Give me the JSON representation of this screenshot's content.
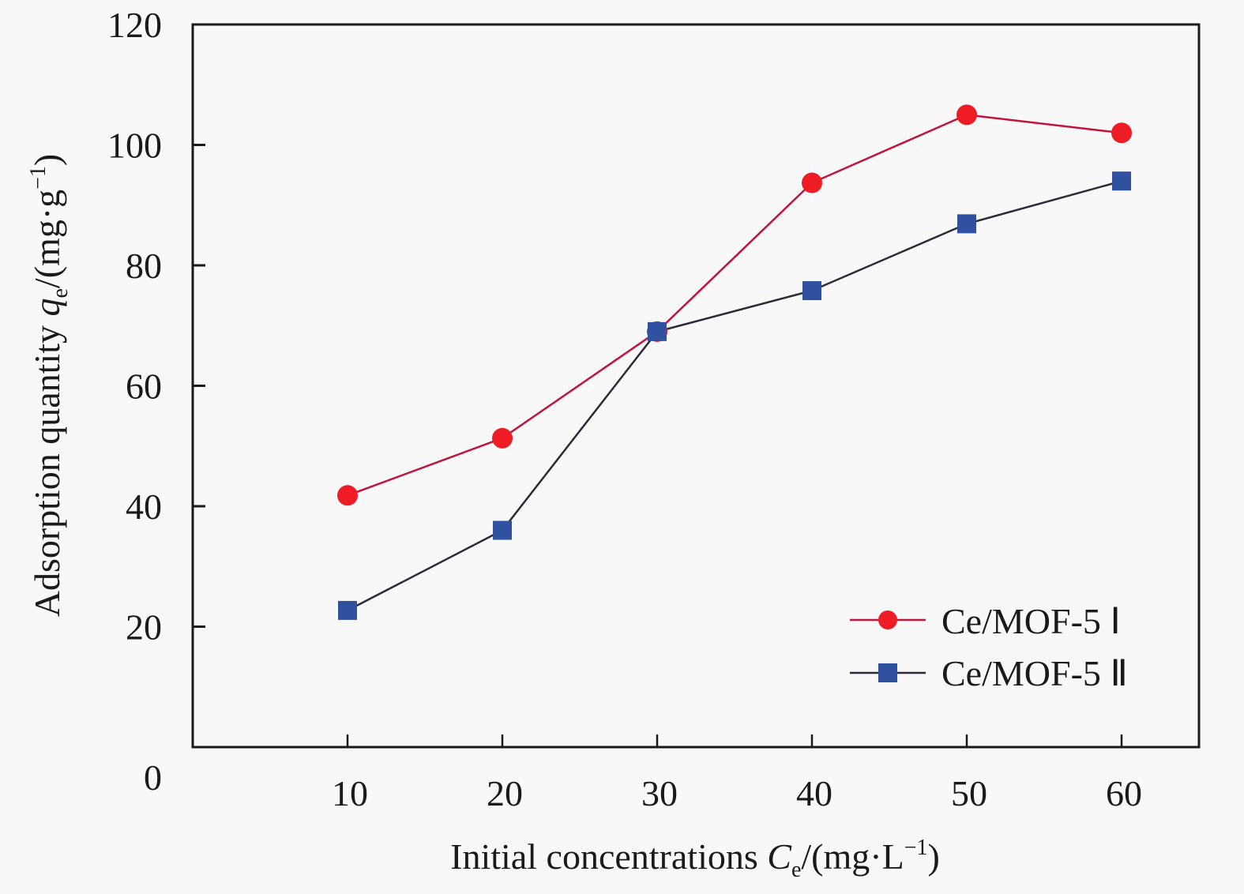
{
  "chart_data": {
    "type": "line",
    "title": "",
    "xlabel": "Initial concentrations C_e/(mg·L⁻¹)",
    "xlabel_parts": {
      "main": "Initial concentrations ",
      "var": "C",
      "sub": "e",
      "unit_open": "/(mg·L",
      "sup": "−1",
      "unit_close": ")"
    },
    "ylabel": "Adsorption quantity q_e/(mg·g⁻¹)",
    "ylabel_parts": {
      "main": "Adsorption quantity ",
      "var": "q",
      "sub": "e",
      "unit_open": "/(mg·g",
      "sup": "−1",
      "unit_close": ")"
    },
    "x": [
      10,
      20,
      30,
      40,
      50,
      60
    ],
    "xlim": [
      0,
      65
    ],
    "ylim": [
      0,
      120
    ],
    "xticks": [
      "10",
      "20",
      "30",
      "40",
      "50",
      "60"
    ],
    "yticks": [
      "0",
      "20",
      "40",
      "60",
      "80",
      "100",
      "120"
    ],
    "grid": false,
    "legend_position": "bottom-right",
    "series": [
      {
        "name": "Ce/MOF-5 Ⅰ",
        "marker": "circle",
        "color": "#ee1c25",
        "line_color": "#c0143c",
        "values": [
          41.8,
          51.3,
          69.0,
          93.7,
          105.0,
          102.0
        ]
      },
      {
        "name": "Ce/MOF-5 Ⅱ",
        "marker": "square",
        "color": "#3050a0",
        "line_color": "#2a2a3a",
        "values": [
          22.7,
          36.0,
          69.0,
          75.8,
          86.9,
          94.0
        ]
      }
    ]
  }
}
